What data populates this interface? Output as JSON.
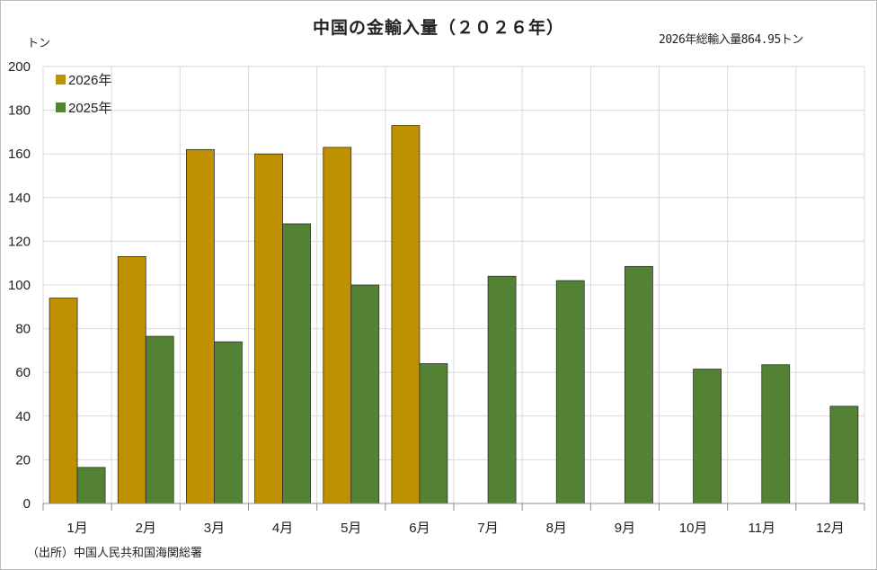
{
  "chart_data": {
    "type": "bar",
    "title": "中国の金輸入量（２０２６年）",
    "subtitle": "2026年総輸入量864.95トン",
    "ylabel": "トン",
    "source": "（出所）中国人民共和国海関総署",
    "categories": [
      "1月",
      "2月",
      "3月",
      "4月",
      "5月",
      "6月",
      "7月",
      "8月",
      "9月",
      "10月",
      "11月",
      "12月"
    ],
    "ylim": [
      0,
      200
    ],
    "yticks": [
      "0",
      "20",
      "40",
      "60",
      "80",
      "100",
      "120",
      "140",
      "160",
      "180",
      "200"
    ],
    "grid": true,
    "legend_position": "top-left",
    "series": [
      {
        "name": "2026年",
        "color": "#bf9000",
        "values": [
          94,
          113,
          162,
          160,
          163,
          173,
          null,
          null,
          null,
          null,
          null,
          null
        ]
      },
      {
        "name": "2025年",
        "color": "#548235",
        "values": [
          16.5,
          76.5,
          74,
          128,
          100,
          64,
          104,
          102,
          108.5,
          61.5,
          63.5,
          44.5
        ]
      }
    ]
  }
}
